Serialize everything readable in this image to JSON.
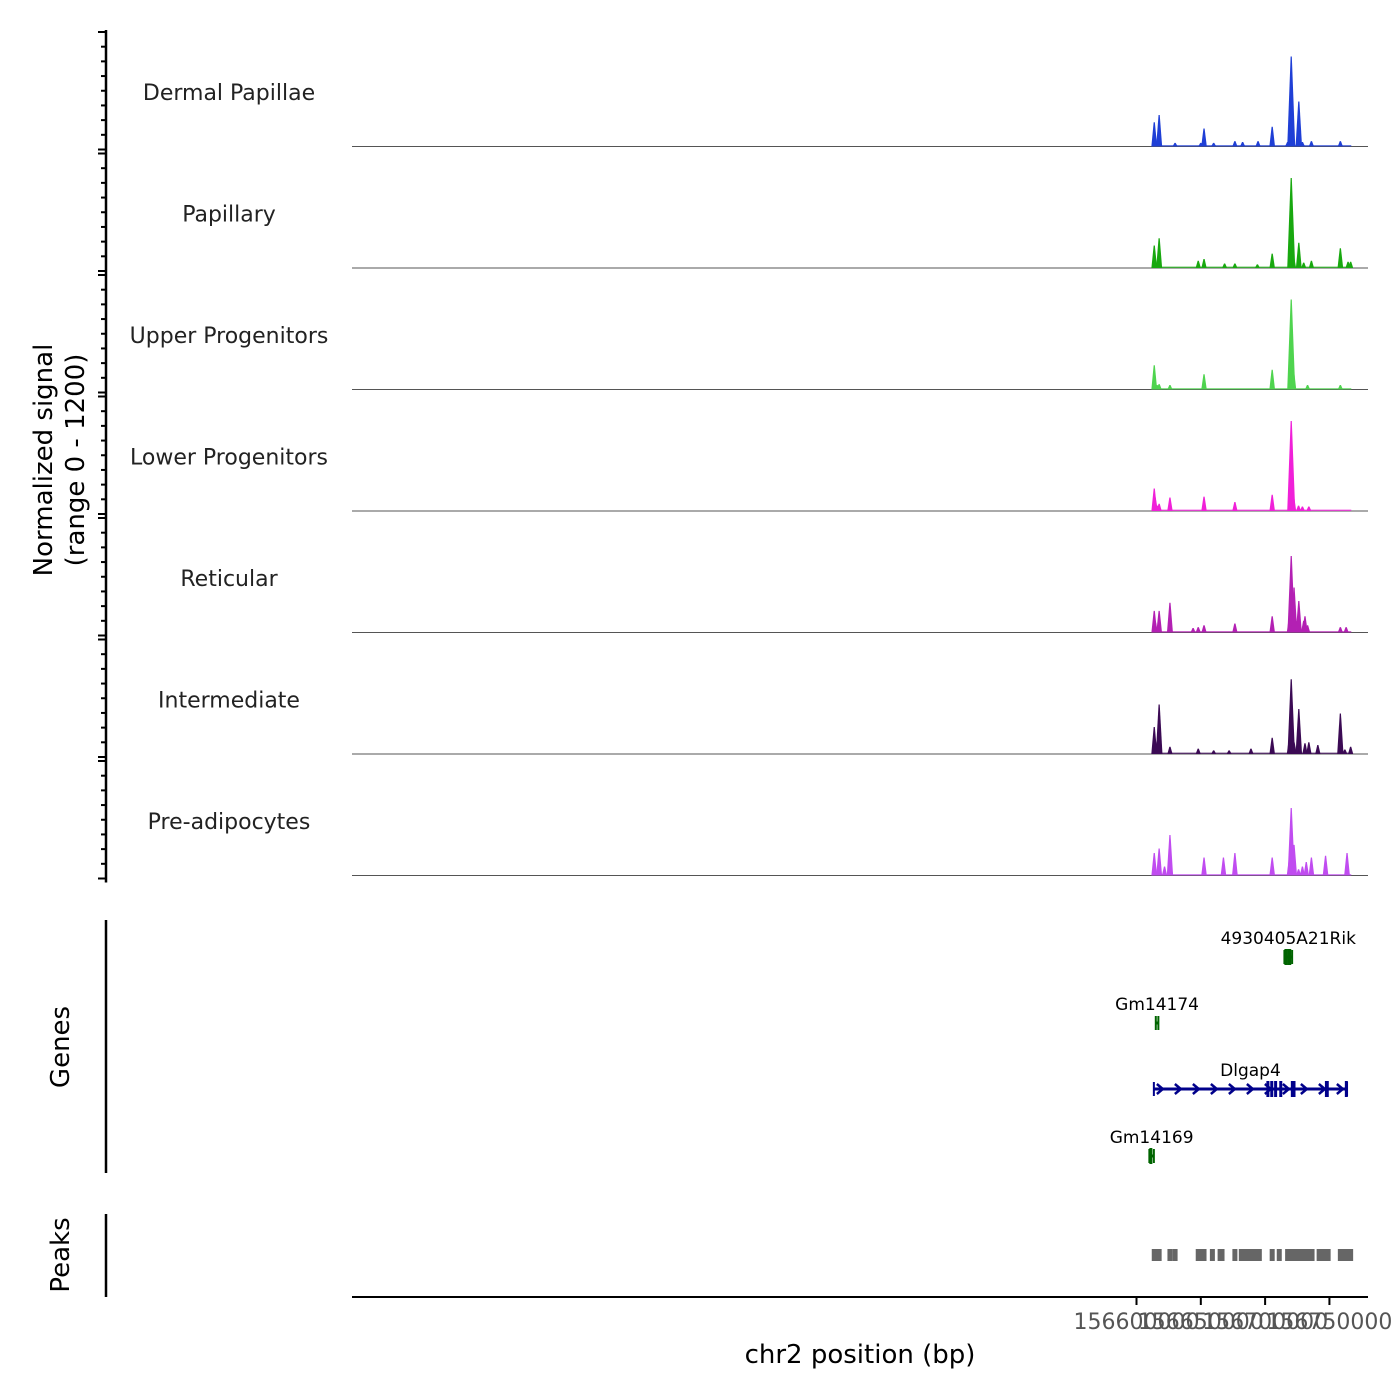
{
  "chart_data": {
    "type": "coverage-track",
    "xlabel": "chr2 position (bp)",
    "ylabel_line1": "Normalized signal",
    "ylabel_line2": "(range 0 - 1200)",
    "x_range": [
      155990000,
      156780000
    ],
    "data_range": [
      156613000,
      156767000
    ],
    "x_ticks": [
      156600000,
      156650000,
      156700000,
      156750000
    ],
    "x_tick_labels": [
      "156600000",
      "156650000",
      "156700000",
      "156750000"
    ],
    "genes_label": "Genes",
    "peaks_label": "Peaks",
    "tracks": [
      {
        "name": "Dermal Papillae",
        "color": "#1f3fd6",
        "peaks": [
          [
            156613800,
            0.27
          ],
          [
            156614300,
            0.12
          ],
          [
            156617600,
            0.35
          ],
          [
            156630000,
            0.04
          ],
          [
            156650000,
            0.04
          ],
          [
            156652500,
            0.2
          ],
          [
            156660000,
            0.04
          ],
          [
            156676500,
            0.06
          ],
          [
            156682500,
            0.05
          ],
          [
            156694500,
            0.06
          ],
          [
            156705500,
            0.22
          ],
          [
            156717500,
            0.05
          ],
          [
            156720300,
            1.0
          ],
          [
            156720700,
            0.45
          ],
          [
            156721500,
            0.15
          ],
          [
            156726200,
            0.5
          ],
          [
            156729000,
            0.05
          ],
          [
            156736000,
            0.06
          ],
          [
            156758500,
            0.06
          ]
        ]
      },
      {
        "name": "Papillary",
        "color": "#18a80f",
        "peaks": [
          [
            156613800,
            0.25
          ],
          [
            156614500,
            0.1
          ],
          [
            156617600,
            0.33
          ],
          [
            156648000,
            0.08
          ],
          [
            156652500,
            0.1
          ],
          [
            156668500,
            0.05
          ],
          [
            156676500,
            0.05
          ],
          [
            156694000,
            0.04
          ],
          [
            156705500,
            0.16
          ],
          [
            156719500,
            0.12
          ],
          [
            156720300,
            1.0
          ],
          [
            156720900,
            0.25
          ],
          [
            156722000,
            0.13
          ],
          [
            156726200,
            0.28
          ],
          [
            156730000,
            0.06
          ],
          [
            156736000,
            0.08
          ],
          [
            156758500,
            0.22
          ],
          [
            156764500,
            0.07
          ],
          [
            156766500,
            0.07
          ]
        ]
      },
      {
        "name": "Upper Progenitors",
        "color": "#4fd44f",
        "peaks": [
          [
            156613800,
            0.27
          ],
          [
            156616000,
            0.05
          ],
          [
            156617600,
            0.06
          ],
          [
            156626000,
            0.05
          ],
          [
            156652500,
            0.17
          ],
          [
            156705500,
            0.22
          ],
          [
            156719500,
            0.08
          ],
          [
            156720300,
            1.0
          ],
          [
            156720900,
            0.4
          ],
          [
            156722000,
            0.22
          ],
          [
            156733000,
            0.05
          ],
          [
            156758500,
            0.05
          ]
        ]
      },
      {
        "name": "Lower Progenitors",
        "color": "#f020d8",
        "peaks": [
          [
            156613800,
            0.25
          ],
          [
            156614500,
            0.15
          ],
          [
            156616500,
            0.06
          ],
          [
            156617600,
            0.08
          ],
          [
            156626000,
            0.15
          ],
          [
            156652500,
            0.16
          ],
          [
            156676500,
            0.1
          ],
          [
            156705500,
            0.18
          ],
          [
            156719000,
            0.06
          ],
          [
            156720300,
            1.0
          ],
          [
            156720900,
            0.3
          ],
          [
            156722000,
            0.18
          ],
          [
            156726000,
            0.06
          ],
          [
            156729000,
            0.05
          ],
          [
            156734000,
            0.05
          ]
        ]
      },
      {
        "name": "Reticular",
        "color": "#b320b3",
        "peaks": [
          [
            156613800,
            0.24
          ],
          [
            156614500,
            0.13
          ],
          [
            156617600,
            0.24
          ],
          [
            156626000,
            0.33
          ],
          [
            156644000,
            0.05
          ],
          [
            156648000,
            0.06
          ],
          [
            156652500,
            0.08
          ],
          [
            156676500,
            0.1
          ],
          [
            156705500,
            0.18
          ],
          [
            156719000,
            0.18
          ],
          [
            156720300,
            0.85
          ],
          [
            156721000,
            0.3
          ],
          [
            156722500,
            0.5
          ],
          [
            156725000,
            0.13
          ],
          [
            156726200,
            0.35
          ],
          [
            156730000,
            0.13
          ],
          [
            156731000,
            0.18
          ],
          [
            156733000,
            0.08
          ],
          [
            156758500,
            0.06
          ],
          [
            156763000,
            0.06
          ]
        ]
      },
      {
        "name": "Intermediate",
        "color": "#3b0a54",
        "peaks": [
          [
            156613800,
            0.3
          ],
          [
            156614500,
            0.16
          ],
          [
            156617600,
            0.55
          ],
          [
            156626000,
            0.08
          ],
          [
            156648000,
            0.06
          ],
          [
            156660000,
            0.04
          ],
          [
            156672000,
            0.04
          ],
          [
            156689000,
            0.06
          ],
          [
            156705500,
            0.18
          ],
          [
            156719000,
            0.18
          ],
          [
            156720300,
            0.83
          ],
          [
            156721200,
            0.28
          ],
          [
            156722500,
            0.13
          ],
          [
            156726200,
            0.5
          ],
          [
            156731000,
            0.12
          ],
          [
            156734000,
            0.13
          ],
          [
            156741000,
            0.1
          ],
          [
            156758500,
            0.45
          ],
          [
            156762000,
            0.05
          ],
          [
            156766500,
            0.08
          ]
        ]
      },
      {
        "name": "Pre-adipocytes",
        "color": "#c04cf0",
        "peaks": [
          [
            156613800,
            0.25
          ],
          [
            156617600,
            0.3
          ],
          [
            156621800,
            0.1
          ],
          [
            156626000,
            0.45
          ],
          [
            156652500,
            0.2
          ],
          [
            156667600,
            0.2
          ],
          [
            156676500,
            0.25
          ],
          [
            156705500,
            0.2
          ],
          [
            156719000,
            0.2
          ],
          [
            156720300,
            0.75
          ],
          [
            156721200,
            0.35
          ],
          [
            156722500,
            0.34
          ],
          [
            156726000,
            0.07
          ],
          [
            156729000,
            0.1
          ],
          [
            156732000,
            0.15
          ],
          [
            156736000,
            0.2
          ],
          [
            156747000,
            0.22
          ],
          [
            156763700,
            0.25
          ]
        ]
      }
    ],
    "genes": [
      {
        "name": "4930405A21Rik",
        "strand": "-",
        "color": "#006400",
        "start": 156715000,
        "end": 156721000,
        "exons": [
          [
            156715000,
            156716300
          ],
          [
            156717100,
            156717300
          ],
          [
            156718000,
            156718200
          ]
        ]
      },
      {
        "name": "Gm14174",
        "strand": "-",
        "color": "#006400",
        "start": 156615000,
        "end": 156617000,
        "exons": []
      },
      {
        "name": "Dlgap4",
        "strand": "+",
        "color": "#00008b",
        "start": 156613500,
        "end": 156763700,
        "exons": [
          [
            156701000,
            156702000
          ],
          [
            156704000,
            156704400
          ],
          [
            156707000,
            156707300
          ],
          [
            156711000,
            156711300
          ],
          [
            156720000,
            156720400
          ],
          [
            156721300,
            156721600
          ],
          [
            156746500,
            156749500
          ],
          [
            156762000,
            156763700
          ]
        ]
      },
      {
        "name": "Gm14169",
        "strand": "-",
        "color": "#006400",
        "start": 156610000,
        "end": 156613500,
        "exons": [
          [
            156610000,
            156612000
          ]
        ]
      }
    ],
    "peaks_regions": [
      156613800,
      156617000,
      156617600,
      156626000,
      156630000,
      156648000,
      156649000,
      156652500,
      156659000,
      156665000,
      156666500,
      156676500,
      156681500,
      156682500,
      156685500,
      156688000,
      156690500,
      156691500,
      156694500,
      156695500,
      156705500,
      156711000,
      156717500,
      156720300,
      156721500,
      156723000,
      156724500,
      156725000,
      156726300,
      156729000,
      156730200,
      156731500,
      156733500,
      156735800,
      156736500,
      156742000,
      156743000,
      156746500,
      156749000,
      156758500,
      156761500,
      156763500,
      156764500,
      156766500
    ]
  }
}
